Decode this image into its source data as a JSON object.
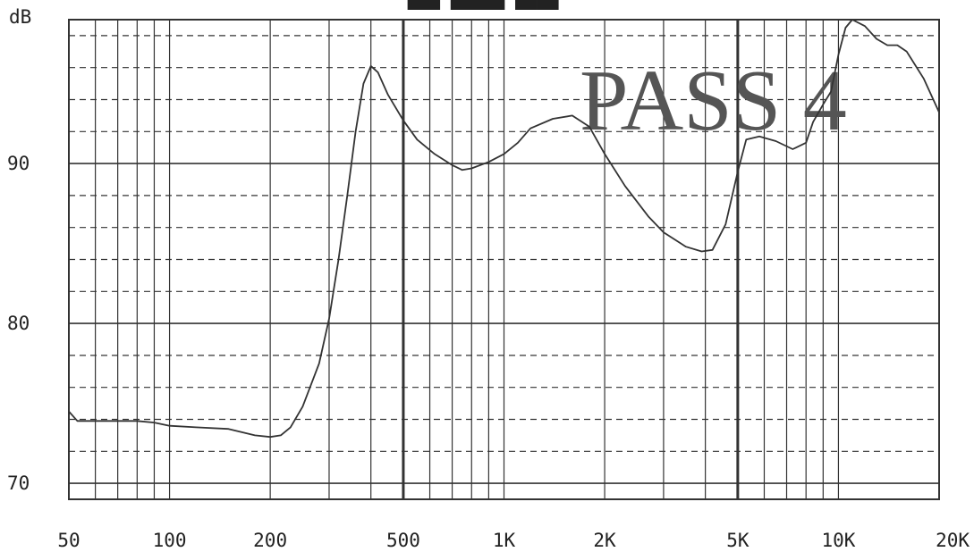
{
  "chart_data": {
    "type": "line",
    "title": "",
    "ylabel": "dB",
    "xlabel": "",
    "x_scale": "log",
    "xlim": [
      50,
      20000
    ],
    "ylim": [
      69,
      99
    ],
    "x_ticks": [
      {
        "value": 50,
        "label": "50"
      },
      {
        "value": 100,
        "label": "100"
      },
      {
        "value": 200,
        "label": "200"
      },
      {
        "value": 500,
        "label": "500"
      },
      {
        "value": 1000,
        "label": "1K"
      },
      {
        "value": 2000,
        "label": "2K"
      },
      {
        "value": 5000,
        "label": "5K"
      },
      {
        "value": 10000,
        "label": "10K"
      },
      {
        "value": 20000,
        "label": "20K"
      }
    ],
    "y_ticks": [
      {
        "value": 70,
        "label": "70"
      },
      {
        "value": 80,
        "label": "80"
      },
      {
        "value": 90,
        "label": "90"
      }
    ],
    "grid": true,
    "annotation": "PASS 4",
    "series": [
      {
        "name": "",
        "color": "#333333",
        "x": [
          50,
          53,
          60,
          70,
          80,
          90,
          100,
          120,
          150,
          180,
          200,
          215,
          230,
          250,
          280,
          300,
          320,
          340,
          360,
          380,
          400,
          420,
          450,
          500,
          550,
          620,
          700,
          750,
          800,
          900,
          1000,
          1100,
          1200,
          1400,
          1600,
          1800,
          2000,
          2300,
          2700,
          3000,
          3500,
          3900,
          4200,
          4600,
          5000,
          5300,
          5800,
          6500,
          7300,
          8000,
          8400,
          9000,
          9500,
          10000,
          10500,
          11000,
          12000,
          13000,
          14000,
          15000,
          16000,
          18000,
          20000
        ],
        "y": [
          74.5,
          73.9,
          73.9,
          73.9,
          73.9,
          73.8,
          73.6,
          73.5,
          73.4,
          73.0,
          72.9,
          73.0,
          73.5,
          74.8,
          77.5,
          80.3,
          84.0,
          88.0,
          92.0,
          95.0,
          96.1,
          95.7,
          94.3,
          92.7,
          91.5,
          90.6,
          89.9,
          89.6,
          89.7,
          90.1,
          90.6,
          91.3,
          92.2,
          92.8,
          93.0,
          92.3,
          90.6,
          88.6,
          86.7,
          85.7,
          84.8,
          84.5,
          84.6,
          86.2,
          89.5,
          91.5,
          91.7,
          91.4,
          90.9,
          91.3,
          92.6,
          93.7,
          94.5,
          96.8,
          98.5,
          99.0,
          98.6,
          97.8,
          97.4,
          97.4,
          97.0,
          95.3,
          93.2
        ]
      }
    ]
  }
}
